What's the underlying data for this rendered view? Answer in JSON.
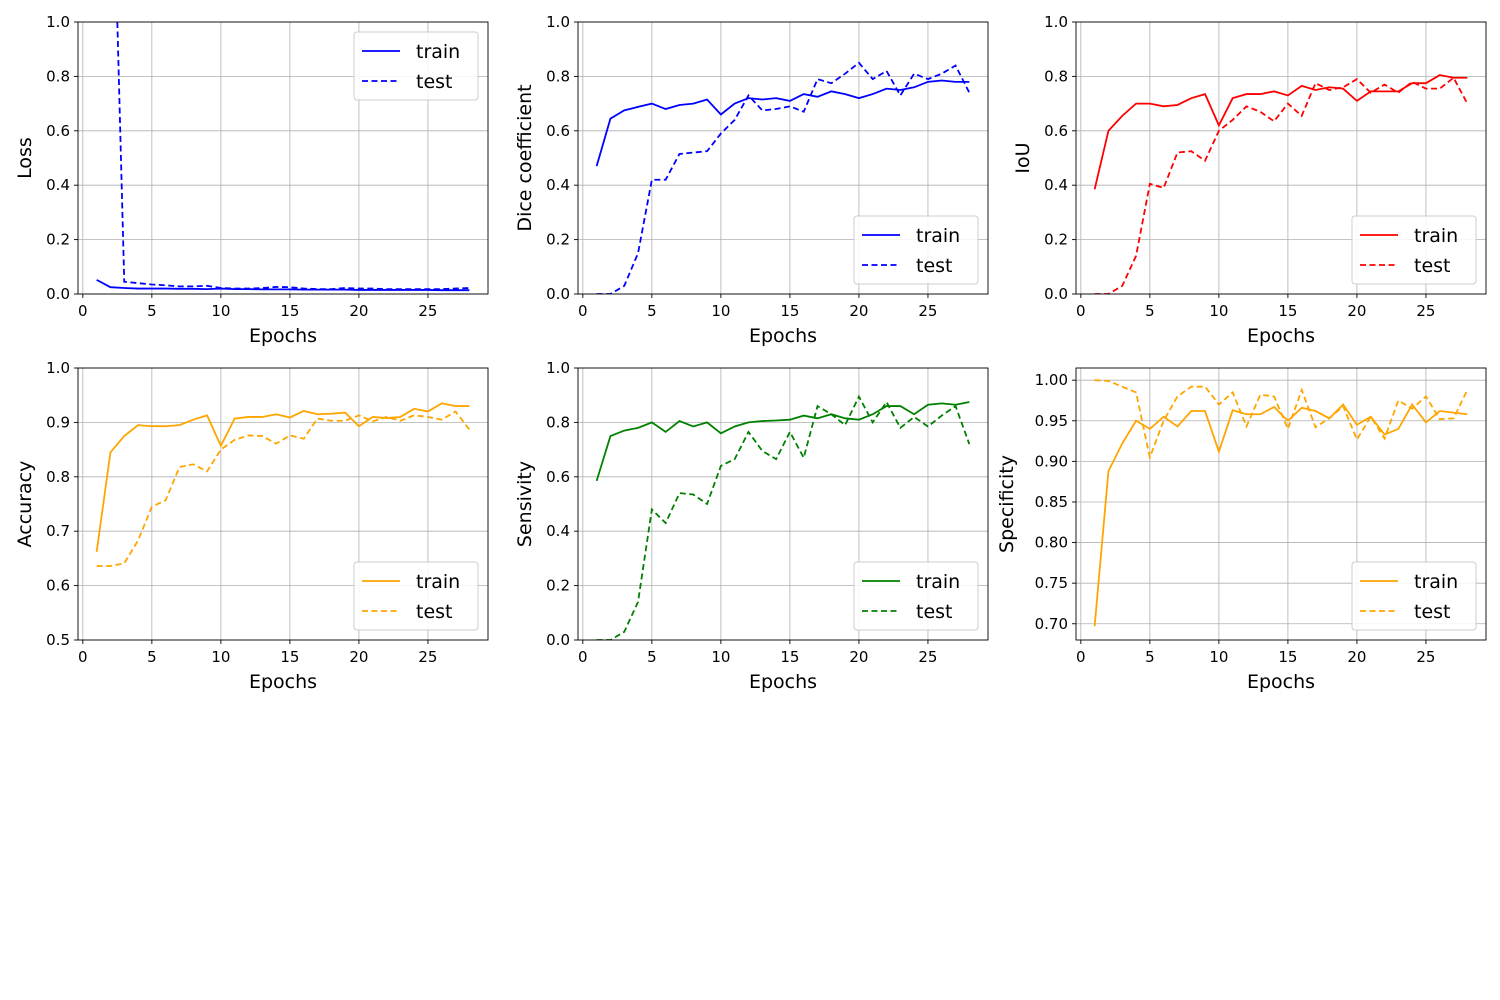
{
  "chart_data": [
    {
      "type": "line",
      "xlabel": "Epochs",
      "ylabel": "Loss",
      "xlim": [
        -0.35,
        29.35
      ],
      "ylim": [
        0,
        1.0
      ],
      "xticks": [
        0,
        5,
        10,
        15,
        20,
        25
      ],
      "yticks": [
        0.0,
        0.2,
        0.4,
        0.6,
        0.8,
        1.0
      ],
      "ytick_labels": [
        "0.0",
        "0.2",
        "0.4",
        "0.6",
        "0.8",
        "1.0"
      ],
      "grid": true,
      "legend": "upper right",
      "color": "#0000ff",
      "series": [
        {
          "name": "train",
          "style": "solid",
          "x": [
            1,
            2,
            3,
            4,
            5,
            6,
            7,
            8,
            9,
            10,
            11,
            12,
            13,
            14,
            15,
            16,
            17,
            18,
            19,
            20,
            21,
            22,
            23,
            24,
            25,
            26,
            27,
            28
          ],
          "values": [
            0.052,
            0.025,
            0.022,
            0.02,
            0.02,
            0.02,
            0.019,
            0.019,
            0.018,
            0.02,
            0.018,
            0.018,
            0.017,
            0.017,
            0.017,
            0.016,
            0.016,
            0.016,
            0.016,
            0.015,
            0.015,
            0.015,
            0.015,
            0.015,
            0.015,
            0.014,
            0.014,
            0.014
          ]
        },
        {
          "name": "test",
          "style": "dashed",
          "x": [
            1,
            2,
            2.5,
            3,
            4,
            5,
            6,
            7,
            8,
            9,
            10,
            11,
            12,
            13,
            14,
            15,
            16,
            17,
            18,
            19,
            20,
            21,
            22,
            23,
            24,
            25,
            26,
            27,
            28
          ],
          "values": [
            null,
            null,
            1.0,
            0.045,
            0.04,
            0.035,
            0.032,
            0.028,
            0.028,
            0.03,
            0.022,
            0.02,
            0.02,
            0.022,
            0.026,
            0.025,
            0.02,
            0.018,
            0.018,
            0.022,
            0.02,
            0.02,
            0.018,
            0.018,
            0.018,
            0.018,
            0.018,
            0.02,
            0.022
          ]
        }
      ]
    },
    {
      "type": "line",
      "xlabel": "Epochs",
      "ylabel": "Dice coefficient",
      "xlim": [
        -0.35,
        29.35
      ],
      "ylim": [
        0,
        1.0
      ],
      "xticks": [
        0,
        5,
        10,
        15,
        20,
        25
      ],
      "yticks": [
        0.0,
        0.2,
        0.4,
        0.6,
        0.8,
        1.0
      ],
      "ytick_labels": [
        "0.0",
        "0.2",
        "0.4",
        "0.6",
        "0.8",
        "1.0"
      ],
      "grid": true,
      "legend": "lower right",
      "color": "#0000ff",
      "series": [
        {
          "name": "train",
          "style": "solid",
          "x": [
            1,
            2,
            3,
            4,
            5,
            6,
            7,
            8,
            9,
            10,
            11,
            12,
            13,
            14,
            15,
            16,
            17,
            18,
            19,
            20,
            21,
            22,
            23,
            24,
            25,
            26,
            27,
            28
          ],
          "values": [
            0.47,
            0.645,
            0.675,
            0.688,
            0.7,
            0.68,
            0.695,
            0.7,
            0.715,
            0.66,
            0.7,
            0.72,
            0.715,
            0.72,
            0.71,
            0.735,
            0.725,
            0.745,
            0.735,
            0.72,
            0.735,
            0.755,
            0.75,
            0.76,
            0.78,
            0.785,
            0.78,
            0.78
          ]
        },
        {
          "name": "test",
          "style": "dashed",
          "x": [
            1,
            2,
            3,
            4,
            5,
            6,
            7,
            8,
            9,
            10,
            11,
            12,
            13,
            14,
            15,
            16,
            17,
            18,
            19,
            20,
            21,
            22,
            23,
            24,
            25,
            26,
            27,
            28
          ],
          "values": [
            0.0,
            0.0,
            0.03,
            0.15,
            0.42,
            0.42,
            0.515,
            0.52,
            0.525,
            0.59,
            0.64,
            0.73,
            0.675,
            0.68,
            0.69,
            0.67,
            0.79,
            0.775,
            0.81,
            0.85,
            0.79,
            0.82,
            0.73,
            0.81,
            0.79,
            0.81,
            0.84,
            0.74
          ]
        }
      ]
    },
    {
      "type": "line",
      "xlabel": "Epochs",
      "ylabel": "IoU",
      "xlim": [
        -0.35,
        29.35
      ],
      "ylim": [
        0,
        1.0
      ],
      "xticks": [
        0,
        5,
        10,
        15,
        20,
        25
      ],
      "yticks": [
        0.0,
        0.2,
        0.4,
        0.6,
        0.8,
        1.0
      ],
      "ytick_labels": [
        "0.0",
        "0.2",
        "0.4",
        "0.6",
        "0.8",
        "1.0"
      ],
      "grid": true,
      "legend": "lower right",
      "color": "#ff0000",
      "series": [
        {
          "name": "train",
          "style": "solid",
          "x": [
            1,
            2,
            3,
            4,
            5,
            6,
            7,
            8,
            9,
            10,
            11,
            12,
            13,
            14,
            15,
            16,
            17,
            18,
            19,
            20,
            21,
            22,
            23,
            24,
            25,
            26,
            27,
            28
          ],
          "values": [
            0.385,
            0.6,
            0.655,
            0.7,
            0.7,
            0.69,
            0.695,
            0.72,
            0.735,
            0.62,
            0.72,
            0.735,
            0.735,
            0.745,
            0.73,
            0.765,
            0.75,
            0.76,
            0.755,
            0.71,
            0.745,
            0.745,
            0.745,
            0.775,
            0.775,
            0.805,
            0.795,
            0.795
          ]
        },
        {
          "name": "test",
          "style": "dashed",
          "x": [
            1,
            2,
            3,
            4,
            5,
            6,
            7,
            8,
            9,
            10,
            11,
            12,
            13,
            14,
            15,
            16,
            17,
            18,
            19,
            20,
            21,
            22,
            23,
            24,
            25,
            26,
            27,
            28
          ],
          "values": [
            0.0,
            0.0,
            0.03,
            0.14,
            0.405,
            0.39,
            0.52,
            0.525,
            0.49,
            0.6,
            0.64,
            0.69,
            0.67,
            0.635,
            0.7,
            0.655,
            0.775,
            0.75,
            0.76,
            0.79,
            0.74,
            0.77,
            0.74,
            0.78,
            0.755,
            0.755,
            0.795,
            0.7
          ]
        }
      ]
    },
    {
      "type": "line",
      "xlabel": "Epochs",
      "ylabel": "Accuracy",
      "xlim": [
        -0.35,
        29.35
      ],
      "ylim": [
        0.5,
        1.0
      ],
      "xticks": [
        0,
        5,
        10,
        15,
        20,
        25
      ],
      "yticks": [
        0.5,
        0.6,
        0.7,
        0.8,
        0.9,
        1.0
      ],
      "ytick_labels": [
        "0.5",
        "0.6",
        "0.7",
        "0.8",
        "0.9",
        "1.0"
      ],
      "grid": true,
      "legend": "lower right",
      "color": "#ffa500",
      "series": [
        {
          "name": "train",
          "style": "solid",
          "x": [
            1,
            2,
            3,
            4,
            5,
            6,
            7,
            8,
            9,
            10,
            11,
            12,
            13,
            14,
            15,
            16,
            17,
            18,
            19,
            20,
            21,
            22,
            23,
            24,
            25,
            26,
            27,
            28
          ],
          "values": [
            0.662,
            0.845,
            0.875,
            0.895,
            0.893,
            0.893,
            0.895,
            0.905,
            0.913,
            0.857,
            0.907,
            0.91,
            0.91,
            0.915,
            0.909,
            0.921,
            0.915,
            0.916,
            0.918,
            0.893,
            0.91,
            0.908,
            0.91,
            0.925,
            0.92,
            0.935,
            0.93,
            0.93
          ]
        },
        {
          "name": "test",
          "style": "dashed",
          "x": [
            1,
            2,
            3,
            4,
            5,
            6,
            7,
            8,
            9,
            10,
            11,
            12,
            13,
            14,
            15,
            16,
            17,
            18,
            19,
            20,
            21,
            22,
            23,
            24,
            25,
            26,
            27,
            28
          ],
          "values": [
            0.636,
            0.636,
            0.641,
            0.683,
            0.745,
            0.757,
            0.818,
            0.823,
            0.81,
            0.85,
            0.868,
            0.876,
            0.875,
            0.861,
            0.876,
            0.87,
            0.907,
            0.903,
            0.903,
            0.913,
            0.902,
            0.91,
            0.903,
            0.913,
            0.91,
            0.905,
            0.92,
            0.887
          ]
        }
      ]
    },
    {
      "type": "line",
      "xlabel": "Epochs",
      "ylabel": "Sensivity",
      "xlim": [
        -0.35,
        29.35
      ],
      "ylim": [
        0,
        1.0
      ],
      "xticks": [
        0,
        5,
        10,
        15,
        20,
        25
      ],
      "yticks": [
        0.0,
        0.2,
        0.4,
        0.6,
        0.8,
        1.0
      ],
      "ytick_labels": [
        "0.0",
        "0.2",
        "0.4",
        "0.6",
        "0.8",
        "1.0"
      ],
      "grid": true,
      "legend": "lower right",
      "color": "#008000",
      "series": [
        {
          "name": "train",
          "style": "solid",
          "x": [
            1,
            2,
            3,
            4,
            5,
            6,
            7,
            8,
            9,
            10,
            11,
            12,
            13,
            14,
            15,
            16,
            17,
            18,
            19,
            20,
            21,
            22,
            23,
            24,
            25,
            26,
            27,
            28
          ],
          "values": [
            0.585,
            0.75,
            0.77,
            0.78,
            0.8,
            0.765,
            0.805,
            0.785,
            0.8,
            0.76,
            0.785,
            0.8,
            0.805,
            0.807,
            0.81,
            0.825,
            0.815,
            0.83,
            0.815,
            0.81,
            0.83,
            0.86,
            0.86,
            0.83,
            0.865,
            0.87,
            0.865,
            0.875
          ]
        },
        {
          "name": "test",
          "style": "dashed",
          "x": [
            1,
            2,
            3,
            4,
            5,
            6,
            7,
            8,
            9,
            10,
            11,
            12,
            13,
            14,
            15,
            16,
            17,
            18,
            19,
            20,
            21,
            22,
            23,
            24,
            25,
            26,
            27,
            28
          ],
          "values": [
            0.0,
            0.0,
            0.03,
            0.14,
            0.48,
            0.43,
            0.54,
            0.535,
            0.5,
            0.64,
            0.665,
            0.765,
            0.695,
            0.665,
            0.765,
            0.67,
            0.86,
            0.83,
            0.79,
            0.895,
            0.8,
            0.875,
            0.78,
            0.82,
            0.785,
            0.825,
            0.86,
            0.72
          ]
        }
      ]
    },
    {
      "type": "line",
      "xlabel": "Epochs",
      "ylabel": "Specificity",
      "xlim": [
        -0.35,
        29.35
      ],
      "ylim": [
        0.68,
        1.015
      ],
      "xticks": [
        0,
        5,
        10,
        15,
        20,
        25
      ],
      "yticks": [
        0.7,
        0.75,
        0.8,
        0.85,
        0.9,
        0.95,
        1.0
      ],
      "ytick_labels": [
        "0.70",
        "0.75",
        "0.80",
        "0.85",
        "0.90",
        "0.95",
        "1.00"
      ],
      "grid": true,
      "legend": "lower right",
      "color": "#ffa500",
      "series": [
        {
          "name": "train",
          "style": "solid",
          "x": [
            1,
            2,
            3,
            4,
            5,
            6,
            7,
            8,
            9,
            10,
            11,
            12,
            13,
            14,
            15,
            16,
            17,
            18,
            19,
            20,
            21,
            22,
            23,
            24,
            25,
            26,
            27,
            28
          ],
          "values": [
            0.697,
            0.888,
            0.922,
            0.95,
            0.94,
            0.955,
            0.943,
            0.962,
            0.962,
            0.912,
            0.963,
            0.958,
            0.958,
            0.967,
            0.95,
            0.966,
            0.962,
            0.953,
            0.97,
            0.945,
            0.955,
            0.933,
            0.94,
            0.97,
            0.948,
            0.962,
            0.96,
            0.958
          ]
        },
        {
          "name": "test",
          "style": "dashed",
          "x": [
            1,
            2,
            3,
            4,
            5,
            6,
            7,
            8,
            9,
            10,
            11,
            12,
            13,
            14,
            15,
            16,
            17,
            18,
            19,
            20,
            21,
            22,
            23,
            24,
            25,
            26,
            27,
            28
          ],
          "values": [
            1.0,
            0.999,
            0.992,
            0.985,
            0.905,
            0.95,
            0.98,
            0.992,
            0.992,
            0.97,
            0.985,
            0.943,
            0.982,
            0.98,
            0.94,
            0.988,
            0.942,
            0.953,
            0.968,
            0.927,
            0.955,
            0.928,
            0.975,
            0.965,
            0.98,
            0.952,
            0.953,
            0.988
          ]
        }
      ]
    }
  ]
}
